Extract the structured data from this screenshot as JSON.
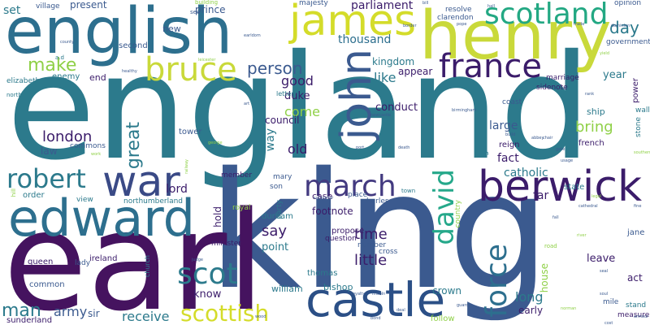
{
  "words": [
    {
      "text": "england",
      "color": "#2c7a8c"
    },
    {
      "text": "king",
      "color": "#3b5a8f"
    },
    {
      "text": "earl",
      "color": "#45135f"
    },
    {
      "text": "henry",
      "color": "#c9d93a"
    },
    {
      "text": "english",
      "color": "#2d6f8e"
    },
    {
      "text": "edward",
      "color": "#2d6f8e"
    },
    {
      "text": "castle",
      "color": "#2b4f86"
    },
    {
      "text": "berwick",
      "color": "#3b1c6a"
    },
    {
      "text": "war",
      "color": "#3a4a86"
    },
    {
      "text": "john",
      "color": "#3b5a8f"
    },
    {
      "text": "james",
      "color": "#d4dc2a"
    },
    {
      "text": "scotland",
      "color": "#23a883"
    },
    {
      "text": "france",
      "color": "#3b1c6a"
    },
    {
      "text": "bruce",
      "color": "#c9d93a"
    },
    {
      "text": "robert",
      "color": "#2c7a8c"
    },
    {
      "text": "march",
      "color": "#433a80"
    },
    {
      "text": "david",
      "color": "#25a88a"
    },
    {
      "text": "scot",
      "color": "#2c7a8c"
    },
    {
      "text": "scottish",
      "color": "#d4dc2a"
    },
    {
      "text": "force",
      "color": "#2d6f8e"
    },
    {
      "text": "make",
      "color": "#8fd047"
    },
    {
      "text": "person",
      "color": "#3b5a8f"
    },
    {
      "text": "day",
      "color": "#2c7a8c"
    },
    {
      "text": "london",
      "color": "#3b1c6a"
    },
    {
      "text": "great",
      "color": "#2c7a8c"
    },
    {
      "text": "man",
      "color": "#2c7a8c"
    },
    {
      "text": "time",
      "color": "#3b1c6a"
    },
    {
      "text": "little",
      "color": "#3b1c6a"
    },
    {
      "text": "say",
      "color": "#3b1c6a"
    },
    {
      "text": "receive",
      "color": "#2c7a8c"
    },
    {
      "text": "army",
      "color": "#3b5a8f"
    },
    {
      "text": "bring",
      "color": "#8fd047"
    },
    {
      "text": "come",
      "color": "#8fd047"
    },
    {
      "text": "old",
      "color": "#3b1c6a"
    },
    {
      "text": "good",
      "color": "#3b1c6a"
    },
    {
      "text": "long",
      "color": "#2c7a8c"
    },
    {
      "text": "like",
      "color": "#2c7a8c"
    },
    {
      "text": "fact",
      "color": "#3b1c6a"
    },
    {
      "text": "large",
      "color": "#3b5a8f"
    },
    {
      "text": "kingdom",
      "color": "#2c7a8c"
    },
    {
      "text": "thousand",
      "color": "#2d6f8e"
    },
    {
      "text": "parliament",
      "color": "#3b1c6a"
    },
    {
      "text": "appear",
      "color": "#3b1c6a"
    },
    {
      "text": "year",
      "color": "#2c7a8c"
    },
    {
      "text": "catholic",
      "color": "#2c7a8c"
    },
    {
      "text": "lord",
      "color": "#3b1c6a"
    },
    {
      "text": "duke",
      "color": "#3b1c6a"
    },
    {
      "text": "council",
      "color": "#3b1c6a"
    },
    {
      "text": "conduct",
      "color": "#3b1c6a"
    },
    {
      "text": "set",
      "color": "#2c7a8c"
    },
    {
      "text": "present",
      "color": "#3b5a8f"
    },
    {
      "text": "prince",
      "color": "#3b5a8f"
    },
    {
      "text": "new",
      "color": "#3b5a8f"
    },
    {
      "text": "second",
      "color": "#3b5a8f"
    },
    {
      "text": "end",
      "color": "#3b1c6a"
    },
    {
      "text": "enemy",
      "color": "#2c7a8c"
    },
    {
      "text": "elizabeth",
      "color": "#2c7a8c"
    },
    {
      "text": "law",
      "color": "#3b5a8f"
    },
    {
      "text": "commons",
      "color": "#3b5a8f"
    },
    {
      "text": "tower",
      "color": "#3b5a8f"
    },
    {
      "text": "member",
      "color": "#3b1c6a"
    },
    {
      "text": "way",
      "color": "#2c7a8c"
    },
    {
      "text": "mary",
      "color": "#3b5a8f"
    },
    {
      "text": "son",
      "color": "#3b5a8f"
    },
    {
      "text": "case",
      "color": "#3b1c6a"
    },
    {
      "text": "place",
      "color": "#3b5a8f"
    },
    {
      "text": "charles",
      "color": "#3b5a8f"
    },
    {
      "text": "footnote",
      "color": "#3b1c6a"
    },
    {
      "text": "propose",
      "color": "#3b1c6a"
    },
    {
      "text": "question",
      "color": "#3b1c6a"
    },
    {
      "text": "number",
      "color": "#3b5a8f"
    },
    {
      "text": "cross",
      "color": "#3b5a8f"
    },
    {
      "text": "point",
      "color": "#2c7a8c"
    },
    {
      "text": "thomas",
      "color": "#2c7a8c"
    },
    {
      "text": "william",
      "color": "#2c7a8c"
    },
    {
      "text": "bishop",
      "color": "#2c7a8c"
    },
    {
      "text": "know",
      "color": "#3b1c6a"
    },
    {
      "text": "durham",
      "color": "#2c7a8c"
    },
    {
      "text": "minister",
      "color": "#3b1c6a"
    },
    {
      "text": "hold",
      "color": "#3b1c6a"
    },
    {
      "text": "queen",
      "color": "#3b1c6a"
    },
    {
      "text": "ireland",
      "color": "#3b1c6a"
    },
    {
      "text": "lady",
      "color": "#3b5a8f"
    },
    {
      "text": "sir",
      "color": "#3b5a8f"
    },
    {
      "text": "common",
      "color": "#3b5a8f"
    },
    {
      "text": "sunderland",
      "color": "#3b1c6a"
    },
    {
      "text": "order",
      "color": "#2c7a8c"
    },
    {
      "text": "view",
      "color": "#2c7a8c"
    },
    {
      "text": "northumberland",
      "color": "#2c7a8c"
    },
    {
      "text": "royal",
      "color": "#8fd047"
    },
    {
      "text": "party",
      "color": "#2c7a8c"
    },
    {
      "text": "crown",
      "color": "#2c7a8c"
    },
    {
      "text": "country",
      "color": "#8fd047"
    },
    {
      "text": "reign",
      "color": "#3b1c6a"
    },
    {
      "text": "general",
      "color": "#2c7a8c"
    },
    {
      "text": "far",
      "color": "#3b1c6a"
    },
    {
      "text": "house",
      "color": "#8fd047"
    },
    {
      "text": "follow",
      "color": "#8fd047"
    },
    {
      "text": "early",
      "color": "#3b1c6a"
    },
    {
      "text": "mile",
      "color": "#3b5a8f"
    },
    {
      "text": "leave",
      "color": "#3b1c6a"
    },
    {
      "text": "act",
      "color": "#3b1c6a"
    },
    {
      "text": "stand",
      "color": "#2c7a8c"
    },
    {
      "text": "measure",
      "color": "#3b1c6a"
    },
    {
      "text": "jane",
      "color": "#3b5a8f"
    },
    {
      "text": "ship",
      "color": "#2c7a8c"
    },
    {
      "text": "french",
      "color": "#3b1c6a"
    },
    {
      "text": "state",
      "color": "#2c7a8c"
    },
    {
      "text": "sidenote",
      "color": "#3b1c6a"
    },
    {
      "text": "coast",
      "color": "#3b5a8f"
    },
    {
      "text": "marriage",
      "color": "#3b1c6a"
    },
    {
      "text": "power",
      "color": "#3b1c6a"
    },
    {
      "text": "wall",
      "color": "#2c7a8c"
    },
    {
      "text": "stone",
      "color": "#2c7a8c"
    },
    {
      "text": "government",
      "color": "#3b5a8f"
    },
    {
      "text": "opinion",
      "color": "#3b5a8f"
    },
    {
      "text": "resolve",
      "color": "#3b5a8f"
    },
    {
      "text": "clarendon",
      "color": "#3b5a8f"
    },
    {
      "text": "majesty",
      "color": "#3b5a8f"
    },
    {
      "text": "village",
      "color": "#3b5a8f"
    },
    {
      "text": "building",
      "color": "#8fd047"
    },
    {
      "text": "sea",
      "color": "#3b5a8f"
    },
    {
      "text": "letter",
      "color": "#2c7a8c"
    },
    {
      "text": "a.d",
      "color": "#2c7a8c"
    },
    {
      "text": "town",
      "color": "#2c7a8c"
    },
    {
      "text": "road",
      "color": "#8fd047"
    },
    {
      "text": "church",
      "color": "#2c7a8c"
    },
    {
      "text": "north",
      "color": "#2c7a8c"
    },
    {
      "text": "hill",
      "color": "#8fd047"
    },
    {
      "text": "county",
      "color": "#3b5a8f"
    },
    {
      "text": "bill",
      "color": "#3b5a8f"
    },
    {
      "text": "cathedral",
      "color": "#3b5a8f"
    },
    {
      "text": "build",
      "color": "#3b5a8f"
    },
    {
      "text": "soul",
      "color": "#3b5a8f"
    },
    {
      "text": "chair",
      "color": "#3b5a8f"
    },
    {
      "text": "guard",
      "color": "#3b5a8f"
    },
    {
      "text": "death",
      "color": "#3b5a8f"
    },
    {
      "text": "port",
      "color": "#3b5a8f"
    },
    {
      "text": "river",
      "color": "#8fd047"
    },
    {
      "text": "gate",
      "color": "#3b5a8f"
    },
    {
      "text": "judge",
      "color": "#3b5a8f"
    },
    {
      "text": "seal",
      "color": "#3b5a8f"
    },
    {
      "text": "newcastle",
      "color": "#3b5a8f"
    },
    {
      "text": "birmingham",
      "color": "#3b5a8f"
    },
    {
      "text": "southern",
      "color": "#8fd047"
    },
    {
      "text": "fine",
      "color": "#3b5a8f"
    },
    {
      "text": "work",
      "color": "#8fd047"
    },
    {
      "text": "healthy",
      "color": "#3b5a8f"
    },
    {
      "text": "railway",
      "color": "#8fd047"
    },
    {
      "text": "dominion",
      "color": "#3b5a8f"
    },
    {
      "text": "leicester",
      "color": "#8fd047"
    },
    {
      "text": "george",
      "color": "#8fd047"
    },
    {
      "text": "royalty",
      "color": "#3b5a8f"
    },
    {
      "text": "lincoln",
      "color": "#3b5a8f"
    },
    {
      "text": "supporter",
      "color": "#3b5a8f"
    },
    {
      "text": "norman",
      "color": "#8fd047"
    },
    {
      "text": "armour",
      "color": "#3b5a8f"
    },
    {
      "text": "deal",
      "color": "#3b5a8f"
    },
    {
      "text": "hall",
      "color": "#3b5a8f"
    },
    {
      "text": "art",
      "color": "#3b5a8f"
    },
    {
      "text": "rank",
      "color": "#3b5a8f"
    },
    {
      "text": "trade",
      "color": "#3b5a8f"
    },
    {
      "text": "yield",
      "color": "#8fd047"
    },
    {
      "text": "usage",
      "color": "#3b5a8f"
    },
    {
      "text": "pope",
      "color": "#3b5a8f"
    },
    {
      "text": "fall",
      "color": "#3b5a8f"
    },
    {
      "text": "cost",
      "color": "#3b5a8f"
    },
    {
      "text": "bond",
      "color": "#3b5a8f"
    },
    {
      "text": "wood",
      "color": "#3b5a8f"
    },
    {
      "text": "grant",
      "color": "#3b5a8f"
    },
    {
      "text": "earldom",
      "color": "#3b5a8f"
    },
    {
      "text": "border",
      "color": "#3b5a8f"
    },
    {
      "text": "legal",
      "color": "#8fd047"
    },
    {
      "text": "abbey",
      "color": "#3b5a8f"
    }
  ]
}
